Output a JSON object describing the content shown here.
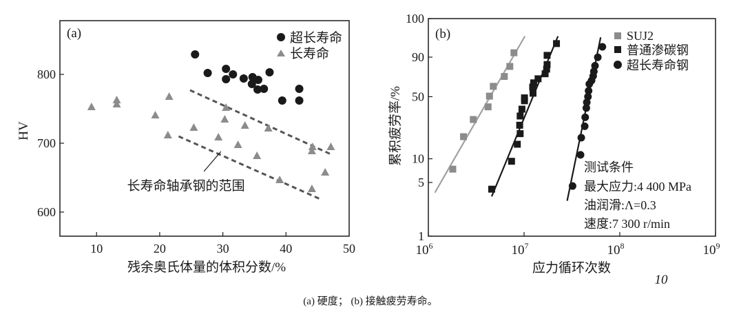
{
  "caption": "(a) 硬度； (b) 接触疲劳寿命。",
  "page_mark": "10",
  "colors": {
    "dark": "#1a1a1a",
    "gray": "#8c8c8c",
    "gray_line": "#a0a0a0",
    "dash": "#555555"
  },
  "chart_data": [
    {
      "panel_label": "(a)",
      "type": "scatter",
      "xlabel": "残余奥氏体量的体积分数/%",
      "ylabel": "HV",
      "xlim": [
        4.2,
        50
      ],
      "ylim": [
        565,
        878
      ],
      "xticks": [
        10,
        20,
        30,
        40,
        50
      ],
      "yticks": [
        600,
        700,
        800
      ],
      "grid": false,
      "legend_position": "top-right",
      "series": [
        {
          "name": "超长寿命",
          "marker": "circle",
          "color": "#1a1a1a",
          "points": [
            [
              25.6,
              829
            ],
            [
              27.6,
              802
            ],
            [
              30.5,
              808
            ],
            [
              30.5,
              793
            ],
            [
              31.6,
              800
            ],
            [
              33.3,
              794
            ],
            [
              34.7,
              796
            ],
            [
              34.6,
              786
            ],
            [
              35.6,
              792
            ],
            [
              35.5,
              778
            ],
            [
              36.5,
              779
            ],
            [
              37.4,
              803
            ],
            [
              39.4,
              762
            ],
            [
              42.1,
              779
            ],
            [
              42.1,
              762
            ]
          ]
        },
        {
          "name": "长寿命",
          "marker": "triangle",
          "color": "#8c8c8c",
          "points": [
            [
              9.2,
              753
            ],
            [
              13.2,
              763
            ],
            [
              13.2,
              757
            ],
            [
              21.5,
              768
            ],
            [
              19.3,
              741
            ],
            [
              21.3,
              712
            ],
            [
              25.4,
              723
            ],
            [
              29.3,
              709
            ],
            [
              30.3,
              735
            ],
            [
              30.5,
              752
            ],
            [
              32.4,
              698
            ],
            [
              33.5,
              726
            ],
            [
              35.4,
              682
            ],
            [
              37.2,
              722
            ],
            [
              39.0,
              647
            ],
            [
              44.1,
              634
            ],
            [
              44.2,
              695
            ],
            [
              44.1,
              689
            ],
            [
              46.2,
              658
            ],
            [
              47.1,
              695
            ]
          ]
        }
      ],
      "bounds": [
        {
          "style": "dashed",
          "points": [
            [
              24.8,
              777
            ],
            [
              47.1,
              684
            ]
          ]
        },
        {
          "style": "dashed",
          "points": [
            [
              23.0,
              710
            ],
            [
              45.4,
              619
            ]
          ]
        }
      ],
      "annotation": {
        "text": "长寿命轴承钢的范围",
        "pointer": [
          [
            29.7,
            688
          ],
          [
            27.0,
            659
          ]
        ]
      }
    },
    {
      "panel_label": "(b)",
      "type": "scatter",
      "xscale": "log",
      "yscale": "weibull probability",
      "xlabel": "应力循环次数",
      "ylabel": "累积疲劳率/%",
      "xlim": [
        1000000,
        1000000000
      ],
      "xticks": [
        {
          "base": "10",
          "exp": "6",
          "value": 1000000
        },
        {
          "base": "10",
          "exp": "7",
          "value": 10000000
        },
        {
          "base": "10",
          "exp": "8",
          "value": 100000000
        },
        {
          "base": "10",
          "exp": "9",
          "value": 1000000000
        }
      ],
      "ylim": [
        1,
        100
      ],
      "yticks": [
        {
          "label": "1",
          "value": 1
        },
        {
          "label": "5",
          "value": 5
        },
        {
          "label": "10",
          "value": 10
        },
        {
          "label": "50",
          "value": 50
        },
        {
          "label": "90",
          "value": 90
        },
        {
          "label": "100",
          "value": 99.94
        }
      ],
      "grid": false,
      "legend_position": "top-right",
      "series": [
        {
          "name": "SUJ2",
          "marker": "square",
          "color": "#8c8c8c",
          "line_color": "#a0a0a0",
          "points": [
            [
              1800000.0,
              7.4
            ],
            [
              2330000.0,
              18.6
            ],
            [
              2950000.0,
              29.3
            ],
            [
              4210000.0,
              39.9
            ],
            [
              4350000.0,
              50.6
            ],
            [
              4770000.0,
              61.3
            ],
            [
              6220000.0,
              72.2
            ],
            [
              7100000.0,
              82.4
            ],
            [
              7840000.0,
              92.8
            ]
          ],
          "fit": [
            [
              1170000.0,
              3.7
            ],
            [
              10200000.0,
              98.7
            ]
          ]
        },
        {
          "name": "普通渗碳钢",
          "marker": "square",
          "color": "#1a1a1a",
          "line_color": "#1a1a1a",
          "points": [
            [
              4590000.0,
              4.1
            ],
            [
              7400000.0,
              9.3
            ],
            [
              8500000.0,
              15.1
            ],
            [
              9100000.0,
              20.2
            ],
            [
              9000000.0,
              25.3
            ],
            [
              9100000.0,
              32.0
            ],
            [
              9500000.0,
              37.8
            ],
            [
              10100000.0,
              45.8
            ],
            [
              10100000.0,
              48.8
            ],
            [
              12400000.0,
              53.7
            ],
            [
              12300000.0,
              60.5
            ],
            [
              12600000.0,
              65.2
            ],
            [
              14000000.0,
              69.7
            ],
            [
              16600000.0,
              75.1
            ],
            [
              17200000.0,
              79.8
            ],
            [
              17400000.0,
              84.1
            ],
            [
              17400000.0,
              91.2
            ],
            [
              21800000.0,
              96.9
            ]
          ],
          "fit": [
            [
              4590000.0,
              3.3
            ],
            [
              22600000.0,
              98.7
            ]
          ]
        },
        {
          "name": "超长寿命钢",
          "marker": "circle",
          "color": "#1a1a1a",
          "line_color": "#1a1a1a",
          "points": [
            [
              32100000.0,
              4.5
            ],
            [
              38900000.0,
              11.2
            ],
            [
              39600000.0,
              18.1
            ],
            [
              43000000.0,
              24.6
            ],
            [
              43500000.0,
              31.0
            ],
            [
              44700000.0,
              38.8
            ],
            [
              45200000.0,
              44.2
            ],
            [
              46500000.0,
              50.0
            ],
            [
              47200000.0,
              56.3
            ],
            [
              48000000.0,
              63.9
            ],
            [
              50700000.0,
              67.7
            ],
            [
              52700000.0,
              72.7
            ],
            [
              53600000.0,
              77.5
            ],
            [
              55100000.0,
              83.0
            ],
            [
              58900000.0,
              89.9
            ],
            [
              65800000.0,
              95.7
            ]
          ],
          "fit": [
            [
              28200000.0,
              2.9
            ],
            [
              63100000.0,
              98.5
            ]
          ]
        }
      ],
      "conditions": {
        "title": "测试条件",
        "lines": [
          "最大应力:4 400 MPa",
          "油润滑:Λ=0.3",
          "速度:7 300 r/min"
        ]
      }
    }
  ]
}
